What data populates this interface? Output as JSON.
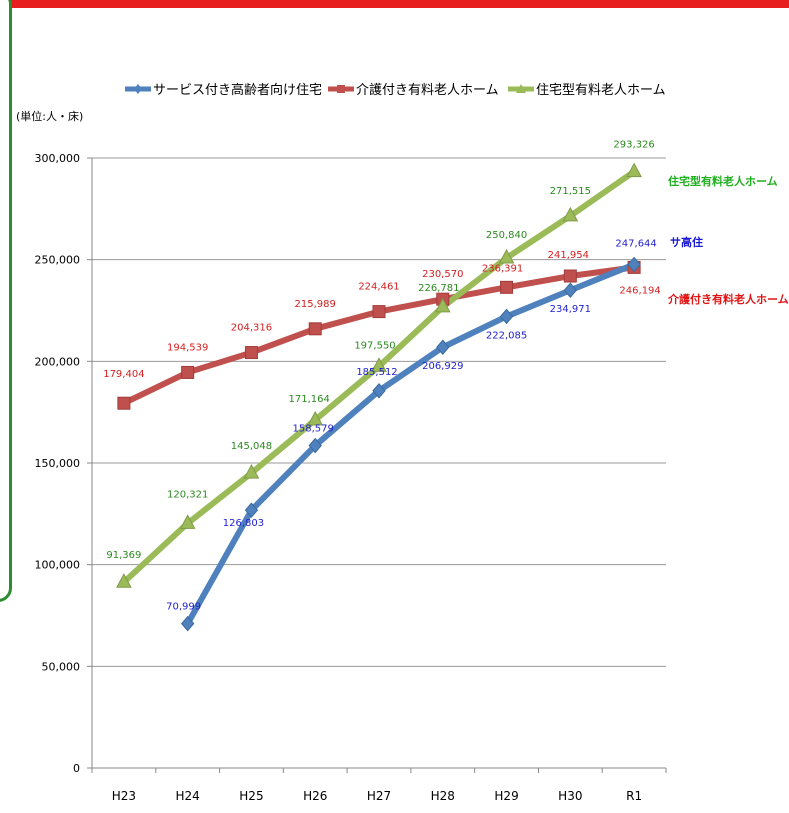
{
  "unit_label": "(単位:人・床)",
  "colors": {
    "sakoju": "#4f81bd",
    "kaigo": "#c0504d",
    "jutaku": "#9bbb59",
    "top_bar": "#e81f1f",
    "frame": "#2e8b2e"
  },
  "chart_data": {
    "type": "line",
    "categories": [
      "H23",
      "H24",
      "H25",
      "H26",
      "H27",
      "H28",
      "H29",
      "H30",
      "R1"
    ],
    "ylim": [
      0,
      300000
    ],
    "yticks": [
      "0",
      "50,000",
      "100,000",
      "150,000",
      "200,000",
      "250,000",
      "300,000"
    ],
    "legend_position": "top",
    "grid": true,
    "series": [
      {
        "key": "sakoju",
        "name": "サービス付き高齢者向け住宅",
        "values": [
          null,
          70999,
          126803,
          158579,
          185512,
          206929,
          222085,
          234971,
          247644
        ],
        "labels": [
          null,
          "70,999",
          "126,803",
          "158,579",
          "185,512",
          "206,929",
          "222,085",
          "234,971",
          "247,644"
        ],
        "end_label": "サ高住",
        "marker": "diamond"
      },
      {
        "key": "kaigo",
        "name": "介護付き有料老人ホーム",
        "values": [
          179404,
          194539,
          204316,
          215989,
          224461,
          230570,
          236391,
          241954,
          246194
        ],
        "labels": [
          "179,404",
          "194,539",
          "204,316",
          "215,989",
          "224,461",
          "230,570",
          "236,391",
          "241,954",
          "246,194"
        ],
        "end_label": "介護付き有料老人ホーム",
        "marker": "square"
      },
      {
        "key": "jutaku",
        "name": "住宅型有料老人ホーム",
        "values": [
          91369,
          120321,
          145048,
          171164,
          197550,
          226781,
          250840,
          271515,
          293326
        ],
        "labels": [
          "91,369",
          "120,321",
          "145,048",
          "171,164",
          "197,550",
          "226,781",
          "250,840",
          "271,515",
          "293,326"
        ],
        "end_label": "住宅型有料老人ホーム",
        "marker": "triangle"
      }
    ]
  }
}
